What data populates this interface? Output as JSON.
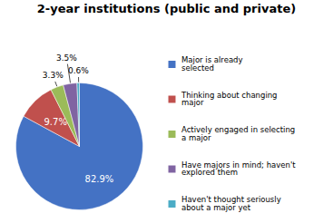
{
  "chart_data": {
    "type": "pie",
    "title": "2-year institutions (public and private)",
    "categories": [
      "Major is already\nselected",
      "Thinking about changing\nmajor",
      "Actively engaged in selecting\na major",
      "Have majors in mind; haven't\nexplored them",
      "Haven't thought seriously\nabout a major yet"
    ],
    "values": [
      82.9,
      9.7,
      3.3,
      3.5,
      0.6
    ],
    "value_labels": [
      "82.9%",
      "9.7%",
      "3.3%",
      "3.5%",
      "0.6%"
    ],
    "colors": [
      "#4472C4",
      "#C0504D",
      "#9BBB59",
      "#8064A2",
      "#4BACC6"
    ],
    "data_labels": true,
    "legend": "right"
  }
}
